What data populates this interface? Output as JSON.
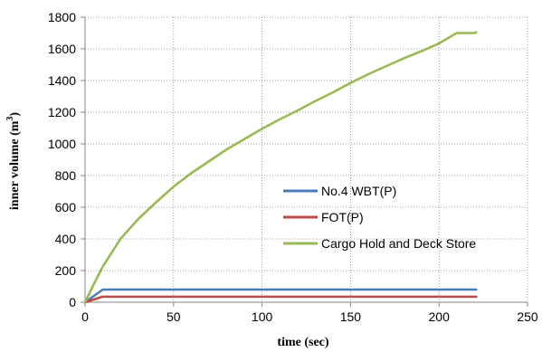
{
  "chart_data": {
    "type": "line",
    "title": "",
    "xlabel": "time (sec)",
    "ylabel": {
      "text": "inner volume (m",
      "superscript": "3",
      "suffix": ")"
    },
    "xlim": [
      0,
      250
    ],
    "ylim": [
      0,
      1800
    ],
    "xticks": [
      0,
      50,
      100,
      150,
      200,
      250
    ],
    "yticks": [
      0,
      200,
      400,
      600,
      800,
      1000,
      1200,
      1400,
      1600,
      1800
    ],
    "grid": true,
    "legend": "center-right",
    "series": [
      {
        "name": "No.4 WBT(P)",
        "color": "#4a7ebb",
        "x": [
          0,
          10,
          221
        ],
        "y": [
          0,
          80,
          80
        ]
      },
      {
        "name": "FOT(P)",
        "color": "#be4b48",
        "x": [
          0,
          10,
          221
        ],
        "y": [
          0,
          35,
          35
        ]
      },
      {
        "name": "Cargo Hold and Deck Store",
        "color": "#98b954",
        "x": [
          0,
          5,
          10,
          20,
          30,
          40,
          50,
          60,
          70,
          80,
          90,
          100,
          110,
          120,
          130,
          140,
          150,
          160,
          170,
          180,
          190,
          200,
          210,
          215,
          220,
          221
        ],
        "y": [
          0,
          115,
          225,
          400,
          525,
          630,
          730,
          815,
          890,
          965,
          1030,
          1095,
          1155,
          1210,
          1270,
          1325,
          1385,
          1440,
          1490,
          1540,
          1585,
          1635,
          1700,
          1700,
          1700,
          1705
        ]
      }
    ]
  }
}
